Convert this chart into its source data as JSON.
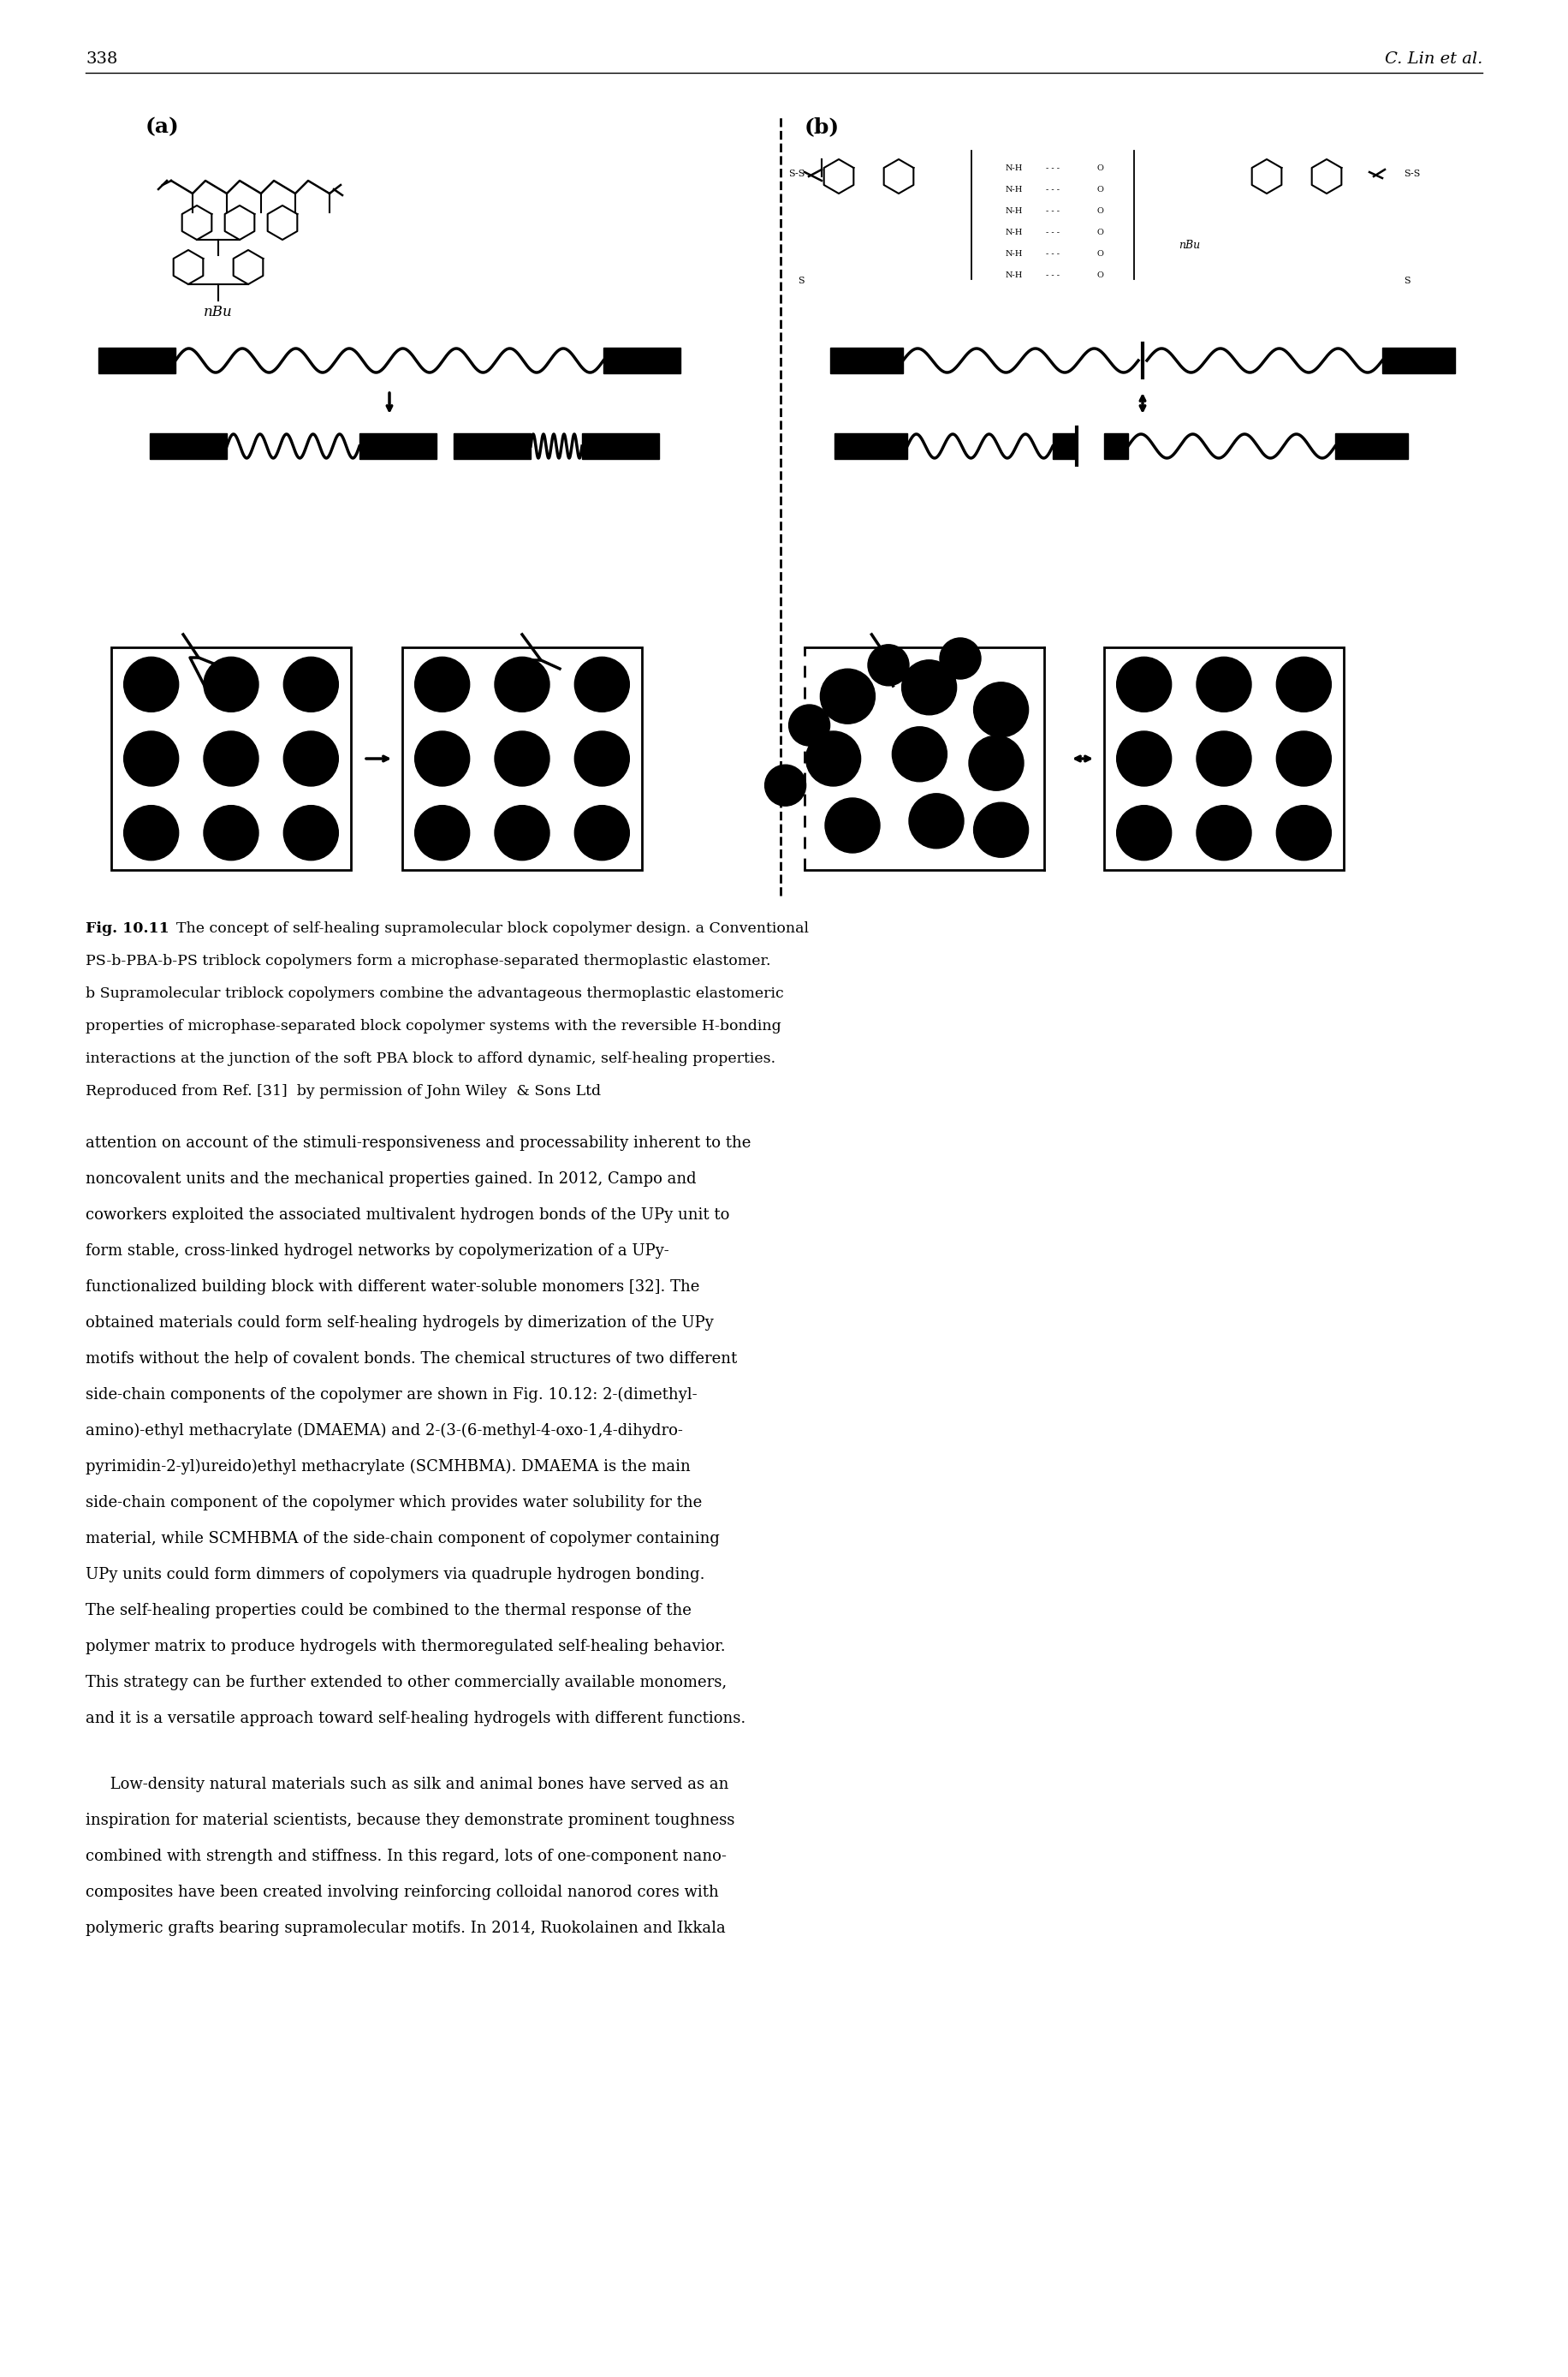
{
  "page_number": "338",
  "header_right": "C. Lin et al.",
  "label_a": "(a)",
  "label_b": "(b)",
  "background_color": "#ffffff",
  "text_color": "#000000",
  "caption_line1_bold": "Fig. 10.11",
  "caption_line1_rest": "  The concept of self-healing supramolecular block copolymer design. a Conventional",
  "caption_lines": [
    "PS-b-PBA-b-PS triblock copolymers form a microphase-separated thermoplastic elastomer.",
    "b Supramolecular triblock copolymers combine the advantageous thermoplastic elastomeric",
    "properties of microphase-separated block copolymer systems with the reversible H-bonding",
    "interactions at the junction of the soft PBA block to afford dynamic, self-healing properties.",
    "Reproduced from Ref. [31]  by permission of John Wiley  & Sons Ltd"
  ],
  "body1_lines": [
    "attention on account of the stimuli-responsiveness and processability inherent to the",
    "noncovalent units and the mechanical properties gained. In 2012, Campo and",
    "coworkers exploited the associated multivalent hydrogen bonds of the UPy unit to",
    "form stable, cross-linked hydrogel networks by copolymerization of a UPy-",
    "functionalized building block with different water-soluble monomers [32]. The",
    "obtained materials could form self-healing hydrogels by dimerization of the UPy",
    "motifs without the help of covalent bonds. The chemical structures of two different",
    "side-chain components of the copolymer are shown in Fig. 10.12: 2-(dimethyl-",
    "amino)-ethyl methacrylate (DMAEMA) and 2-(3-(6-methyl-4-oxo-1,4-dihydro-",
    "pyrimidin-2-yl)ureido)ethyl methacrylate (SCMHBMA). DMAEMA is the main",
    "side-chain component of the copolymer which provides water solubility for the",
    "material, while SCMHBMA of the side-chain component of copolymer containing",
    "UPy units could form dimmers of copolymers via quadruple hydrogen bonding.",
    "The self-healing properties could be combined to the thermal response of the",
    "polymer matrix to produce hydrogels with thermoregulated self-healing behavior.",
    "This strategy can be further extended to other commercially available monomers,",
    "and it is a versatile approach toward self-healing hydrogels with different functions."
  ],
  "body2_lines": [
    "     Low-density natural materials such as silk and animal bones have served as an",
    "inspiration for material scientists, because they demonstrate prominent toughness",
    "combined with strength and stiffness. In this regard, lots of one-component nano-",
    "composites have been created involving reinforcing colloidal nanorod cores with",
    "polymeric grafts bearing supramolecular motifs. In 2014, Ruokolainen and Ikkala"
  ]
}
